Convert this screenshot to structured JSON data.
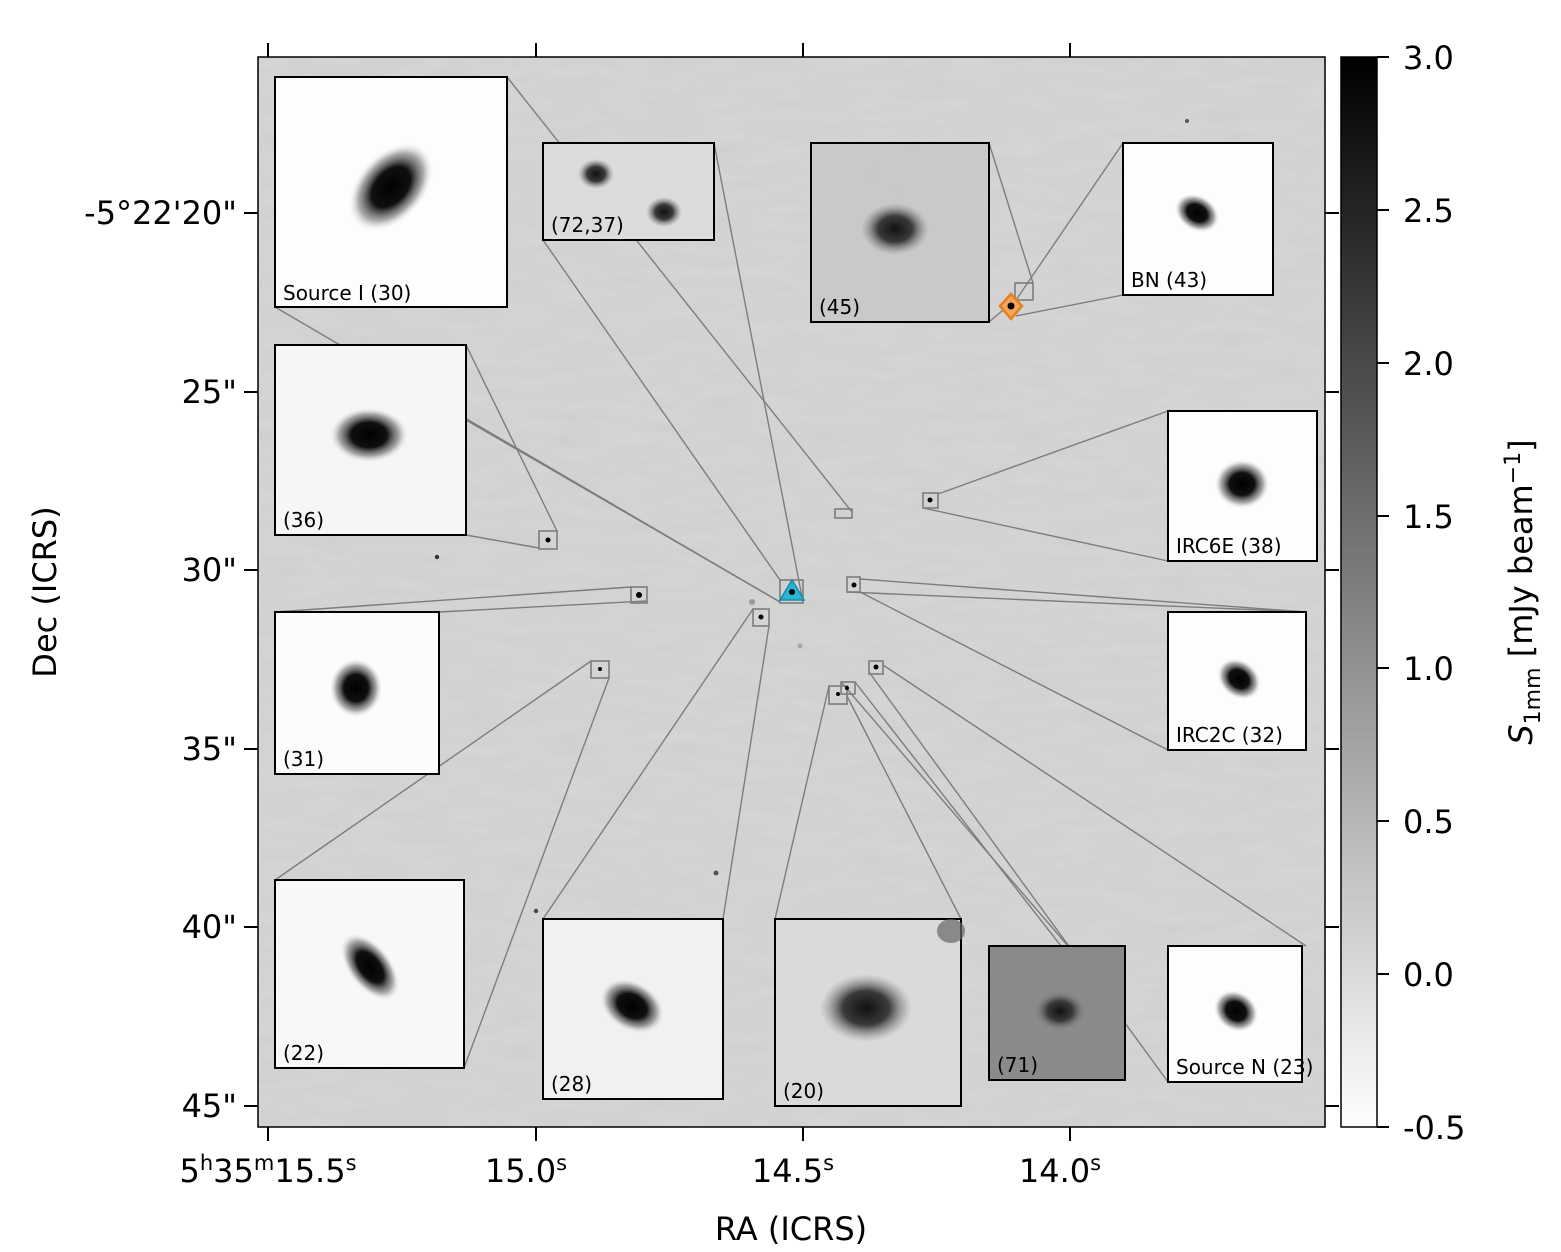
{
  "chart_data": {
    "type": "heatmap",
    "xlabel": "RA (ICRS)",
    "ylabel": "Dec (ICRS)",
    "x_ticks": [
      {
        "label": "5h35m15.5s"
      },
      {
        "label": "15.0s"
      },
      {
        "label": "14.5s"
      },
      {
        "label": "14.0s"
      }
    ],
    "y_ticks": [
      "-5°22'20\"",
      "25\"",
      "30\"",
      "35\"",
      "40\"",
      "45\""
    ],
    "colorbar": {
      "label": "S1mm [mJy beam−1]",
      "range": [
        -0.5,
        3.0
      ],
      "ticks": [
        "3.0",
        "2.5",
        "2.0",
        "1.5",
        "1.0",
        "0.5",
        "0.0",
        "-0.5"
      ],
      "colormap": "gray_r"
    },
    "insets": [
      {
        "label": "Source I (30)"
      },
      {
        "label": "(72,37)"
      },
      {
        "label": "(45)"
      },
      {
        "label": "BN (43)"
      },
      {
        "label": "(36)"
      },
      {
        "label": "IRC6E (38)"
      },
      {
        "label": "(31)"
      },
      {
        "label": "IRC2C (32)"
      },
      {
        "label": "(22)"
      },
      {
        "label": "(28)"
      },
      {
        "label": "(20)"
      },
      {
        "label": "(71)"
      },
      {
        "label": "Source N (23)"
      }
    ],
    "markers": [
      {
        "type": "triangle",
        "color": "#29b6d6"
      },
      {
        "type": "diamond",
        "color": "#f08c2a"
      }
    ]
  }
}
